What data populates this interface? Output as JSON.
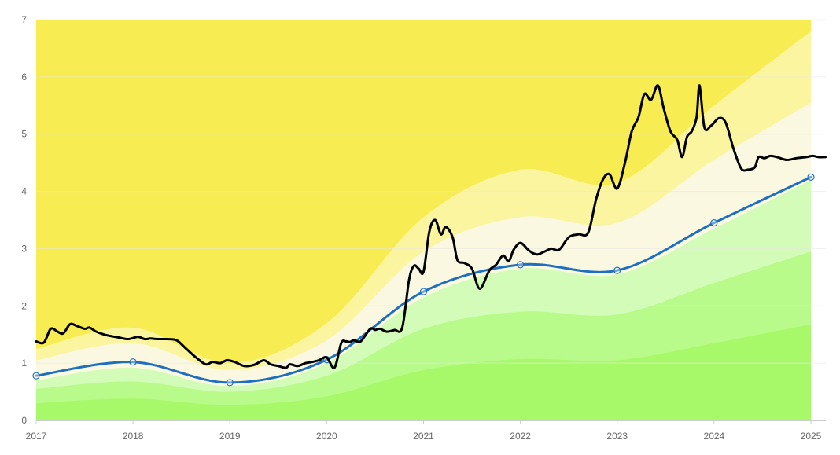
{
  "chart_data": {
    "type": "area",
    "title": "",
    "xlabel": "",
    "ylabel": "",
    "x_ticks": [
      "2017",
      "2018",
      "2019",
      "2020",
      "2021",
      "2022",
      "2023",
      "2024",
      "2025"
    ],
    "y_ticks": [
      "0",
      "1",
      "2",
      "3",
      "4",
      "5",
      "6",
      "7"
    ],
    "xlim": [
      2017,
      2025.15
    ],
    "ylim": [
      0,
      7
    ],
    "grid": true,
    "legend": "none",
    "x": [
      2017,
      2018,
      2019,
      2020,
      2021,
      2022,
      2023,
      2024,
      2025
    ],
    "bands": [
      {
        "color": "#a8f96a",
        "values": [
          0.3,
          0.38,
          0.27,
          0.42,
          0.88,
          1.07,
          1.05,
          1.35,
          1.68
        ]
      },
      {
        "color": "#b8fb8a",
        "values": [
          0.55,
          0.68,
          0.5,
          0.78,
          1.6,
          1.9,
          1.85,
          2.4,
          2.95
        ]
      },
      {
        "color": "#d2fcb8",
        "values": [
          0.7,
          0.92,
          0.6,
          1.0,
          2.15,
          2.65,
          2.55,
          3.35,
          4.2
        ]
      },
      {
        "color": "#faf8e0",
        "values": [
          1.05,
          1.35,
          0.88,
          1.4,
          2.95,
          3.55,
          3.45,
          4.55,
          5.55
        ]
      },
      {
        "color": "#fbf5a0",
        "values": [
          1.25,
          1.62,
          1.0,
          1.7,
          3.55,
          4.38,
          4.15,
          5.5,
          6.8
        ]
      },
      {
        "color": "#f7ec52",
        "values": [
          7,
          7,
          7,
          7,
          7,
          7,
          7,
          7,
          7
        ]
      }
    ],
    "series": [
      {
        "color": "#1f6fc0",
        "x": [
          2017,
          2018,
          2019,
          2020,
          2021,
          2022,
          2023,
          2024,
          2025
        ],
        "values": [
          0.78,
          1.02,
          0.66,
          1.06,
          2.25,
          2.72,
          2.62,
          3.45,
          4.25
        ],
        "markers": true
      },
      {
        "color": "#000000",
        "x": [
          2017.0,
          2017.08,
          2017.15,
          2017.22,
          2017.28,
          2017.35,
          2017.42,
          2017.5,
          2017.55,
          2017.62,
          2017.7,
          2017.75,
          2017.85,
          2017.95,
          2018.05,
          2018.12,
          2018.18,
          2018.25,
          2018.35,
          2018.45,
          2018.55,
          2018.65,
          2018.75,
          2018.82,
          2018.9,
          2018.97,
          2019.05,
          2019.15,
          2019.25,
          2019.35,
          2019.42,
          2019.5,
          2019.58,
          2019.62,
          2019.7,
          2019.78,
          2019.85,
          2019.92,
          2020.0,
          2020.08,
          2020.15,
          2020.2,
          2020.24,
          2020.28,
          2020.35,
          2020.45,
          2020.5,
          2020.55,
          2020.62,
          2020.7,
          2020.78,
          2020.85,
          2020.9,
          2020.95,
          2021.0,
          2021.06,
          2021.12,
          2021.18,
          2021.23,
          2021.3,
          2021.35,
          2021.42,
          2021.5,
          2021.58,
          2021.68,
          2021.75,
          2021.82,
          2021.88,
          2021.93,
          2022.0,
          2022.08,
          2022.13,
          2022.18,
          2022.25,
          2022.32,
          2022.4,
          2022.5,
          2022.6,
          2022.7,
          2022.78,
          2022.85,
          2022.92,
          2023.0,
          2023.08,
          2023.15,
          2023.22,
          2023.28,
          2023.35,
          2023.42,
          2023.48,
          2023.55,
          2023.62,
          2023.67,
          2023.72,
          2023.77,
          2023.82,
          2023.85,
          2023.9,
          2023.97,
          2024.05,
          2024.12,
          2024.2,
          2024.28,
          2024.35,
          2024.42,
          2024.46,
          2024.52,
          2024.58,
          2024.65,
          2024.75,
          2024.85,
          2024.95,
          2025.02,
          2025.08,
          2025.15
        ],
        "values": [
          1.38,
          1.36,
          1.6,
          1.55,
          1.52,
          1.68,
          1.65,
          1.6,
          1.62,
          1.55,
          1.5,
          1.48,
          1.45,
          1.42,
          1.46,
          1.42,
          1.43,
          1.42,
          1.42,
          1.4,
          1.25,
          1.1,
          0.98,
          1.02,
          1.0,
          1.05,
          1.02,
          0.95,
          0.97,
          1.05,
          0.98,
          0.95,
          0.92,
          0.98,
          0.95,
          1.0,
          1.02,
          1.05,
          1.1,
          0.92,
          1.35,
          1.38,
          1.37,
          1.4,
          1.38,
          1.6,
          1.58,
          1.6,
          1.55,
          1.58,
          1.62,
          2.45,
          2.7,
          2.65,
          2.6,
          3.3,
          3.5,
          3.25,
          3.38,
          3.2,
          2.8,
          2.75,
          2.65,
          2.3,
          2.62,
          2.72,
          2.88,
          2.78,
          2.98,
          3.1,
          2.98,
          2.92,
          2.9,
          2.95,
          3.0,
          2.98,
          3.2,
          3.25,
          3.28,
          3.85,
          4.2,
          4.3,
          4.05,
          4.5,
          5.05,
          5.3,
          5.7,
          5.6,
          5.85,
          5.45,
          5.05,
          4.9,
          4.6,
          4.95,
          5.05,
          5.3,
          5.85,
          5.12,
          5.15,
          5.28,
          5.2,
          4.75,
          4.4,
          4.38,
          4.42,
          4.6,
          4.58,
          4.62,
          4.6,
          4.55,
          4.58,
          4.6,
          4.62,
          4.6,
          4.6
        ],
        "markers": false
      }
    ]
  }
}
